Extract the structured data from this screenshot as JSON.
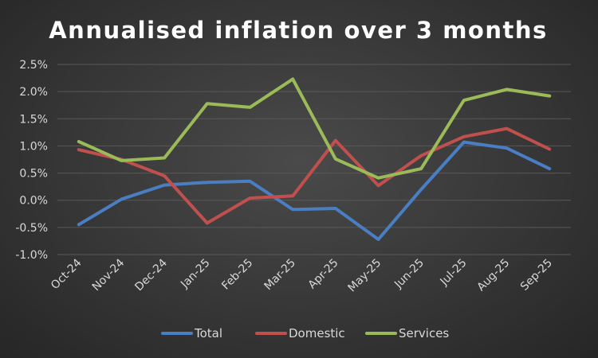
{
  "chart_data": {
    "type": "line",
    "title": "Annualised inflation over 3 months",
    "xlabel": "",
    "ylabel": "",
    "categories": [
      "Oct-24",
      "Nov-24",
      "Dec-24",
      "Jan-25",
      "Feb-25",
      "Mar-25",
      "Apr-25",
      "May-25",
      "Jun-25",
      "Jul-25",
      "Aug-25",
      "Sep-25"
    ],
    "ylim": [
      -1.0,
      2.5
    ],
    "yticks": [
      -1.0,
      -0.5,
      0.0,
      0.5,
      1.0,
      1.5,
      2.0,
      2.5
    ],
    "ytick_labels": [
      "-1.0%",
      "-0.5%",
      "0.0%",
      "0.5%",
      "1.0%",
      "1.5%",
      "2.0%",
      "2.5%"
    ],
    "grid": true,
    "legend_position": "bottom",
    "series": [
      {
        "name": "Total",
        "color": "#4a7ec2",
        "values": [
          -0.45,
          0.02,
          0.28,
          0.33,
          0.35,
          -0.17,
          -0.15,
          -0.72,
          0.2,
          1.07,
          0.96,
          0.58
        ]
      },
      {
        "name": "Domestic",
        "color": "#c0504d",
        "values": [
          0.93,
          0.75,
          0.45,
          -0.42,
          0.04,
          0.08,
          1.1,
          0.27,
          0.82,
          1.17,
          1.32,
          0.94
        ]
      },
      {
        "name": "Services",
        "color": "#9bbb59",
        "values": [
          1.08,
          0.73,
          0.78,
          1.78,
          1.71,
          2.23,
          0.76,
          0.41,
          0.58,
          1.84,
          2.04,
          1.92
        ]
      }
    ]
  }
}
